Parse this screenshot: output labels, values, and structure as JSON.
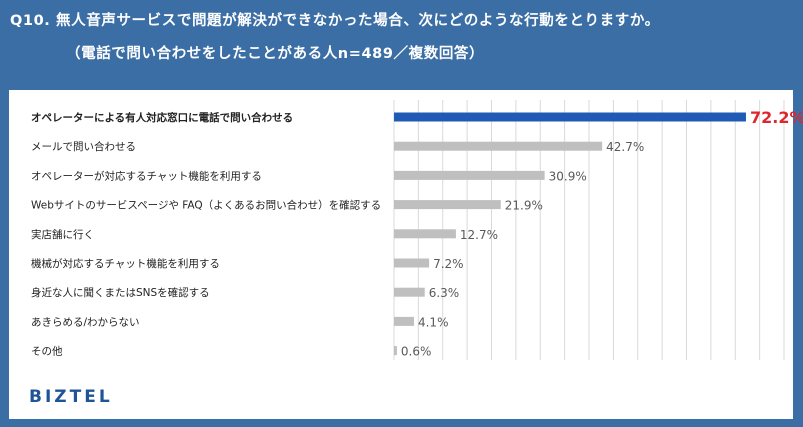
{
  "chart_data": {
    "type": "bar",
    "orientation": "horizontal",
    "title": "Q10. 無人音声サービスで問題が解決ができなかった場合、次にどのような行動をとりますか。",
    "subtitle": "（電話で問い合わせをしたことがある人n=489／複数回答）",
    "categories": [
      "オペレーターによる有人対応窓口に電話で問い合わせる",
      "メールで問い合わせる",
      "オペレーターが対応するチャット機能を利用する",
      "Webサイトのサービスページや FAQ（よくあるお問い合わせ）を確認する",
      "実店舗に行く",
      "機械が対応するチャット機能を利用する",
      "身近な人に聞くまたはSNSを確認する",
      "あきらめる/わからない",
      "その他"
    ],
    "values": [
      72.2,
      42.7,
      30.9,
      21.9,
      12.7,
      7.2,
      6.3,
      4.1,
      0.6
    ],
    "value_labels": [
      "72.2%",
      "42.7%",
      "30.9%",
      "21.9%",
      "12.7%",
      "7.2%",
      "6.3%",
      "4.1%",
      "0.6%"
    ],
    "unit": "%",
    "xlim": [
      0,
      80
    ],
    "grid": true,
    "highlight_index": 0,
    "colors": {
      "highlight_bar": "#1f5bb4",
      "bar": "#bfbfbf",
      "highlight_label": "#e0262d",
      "label": "#595959",
      "grid": "#d9d9d9",
      "background": "#3a6ea5"
    }
  },
  "brand": {
    "logo_text": "BIZTEL"
  }
}
